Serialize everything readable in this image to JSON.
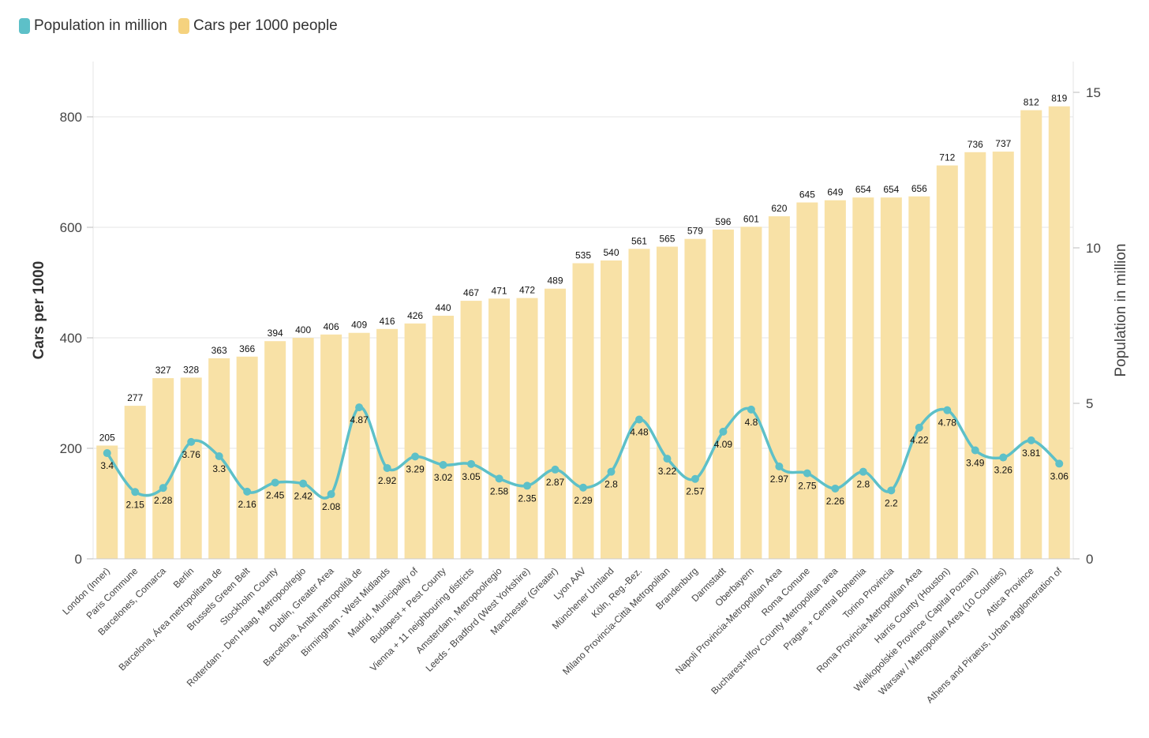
{
  "legend": {
    "items": [
      {
        "label": "Population in million",
        "color": "#5dc0c8"
      },
      {
        "label": "Cars per 1000 people",
        "color": "#f5d27e"
      }
    ]
  },
  "colors": {
    "bar": "#f8e1a6",
    "line": "#5dc0c8",
    "grid": "#e6e6e6",
    "axis_text": "#444444"
  },
  "chart_data": {
    "type": "bar",
    "categories": [
      "London (Inner)",
      "Paris Commune",
      "Barcelones, Comarca",
      "Berlin",
      "Barcelona, Área metropolitana de",
      "Brussels Green Belt",
      "Stockholm County",
      "Rotterdam - Den Haag, Metropoolregio",
      "Dublin, Greater Area",
      "Barcelona, Àmbit metropolità de",
      "Birmingham - West Midlands",
      "Madrid, Municipality of",
      "Budapest + Pest County",
      "Vienna + 11 neighbouring districts",
      "Amsterdam, Metropoolregio",
      "Leeds - Bradford (West Yorkshire)",
      "Manchester (Greater)",
      "Lyon AAV",
      "Münchener Umland",
      "Köln, Reg.-Bez.",
      "Milano Provincia-Città Metropolitan",
      "Brandenburg",
      "Darmstadt",
      "Oberbayern",
      "Napoli Provincia-Metropolitan Area",
      "Roma Comune",
      "Bucharest+Ilfov County Metropolitan area",
      "Prague + Central Bohemia",
      "Torino Provincia",
      "Roma Provincia-Metropolitan Area",
      "Harris County (Houston)",
      "Wielkopolskie Province (Capital Poznan)",
      "Warsaw / Metropolitan Area (10 Counties)",
      "Attica Province",
      "Athens and Piraeus, Urban agglomeration of"
    ],
    "series": [
      {
        "name": "Cars per 1000 people",
        "axis": "left",
        "kind": "bar",
        "values": [
          205,
          277,
          327,
          328,
          363,
          366,
          394,
          400,
          406,
          409,
          416,
          426,
          440,
          467,
          471,
          472,
          489,
          535,
          540,
          561,
          565,
          579,
          596,
          601,
          620,
          645,
          649,
          654,
          654,
          656,
          712,
          736,
          737,
          812,
          819
        ]
      },
      {
        "name": "Population in million",
        "axis": "right",
        "kind": "line",
        "values": [
          3.4,
          2.15,
          2.28,
          3.76,
          3.3,
          2.16,
          2.45,
          2.42,
          2.08,
          4.87,
          2.92,
          3.29,
          3.02,
          3.05,
          2.58,
          2.35,
          2.87,
          2.29,
          2.8,
          4.48,
          3.22,
          2.57,
          4.09,
          4.8,
          2.97,
          2.75,
          2.26,
          2.8,
          2.2,
          4.22,
          4.78,
          3.49,
          3.26,
          3.81,
          3.06
        ]
      }
    ],
    "y_left": {
      "label": "Cars per 1000",
      "ylim": [
        0,
        900
      ],
      "ticks": [
        0,
        200,
        400,
        600,
        800
      ]
    },
    "y_right": {
      "label": "Population in million",
      "ylim": [
        0,
        16
      ],
      "ticks": [
        0,
        5,
        10,
        15
      ]
    },
    "grid": true,
    "legend_position": "top-left"
  }
}
